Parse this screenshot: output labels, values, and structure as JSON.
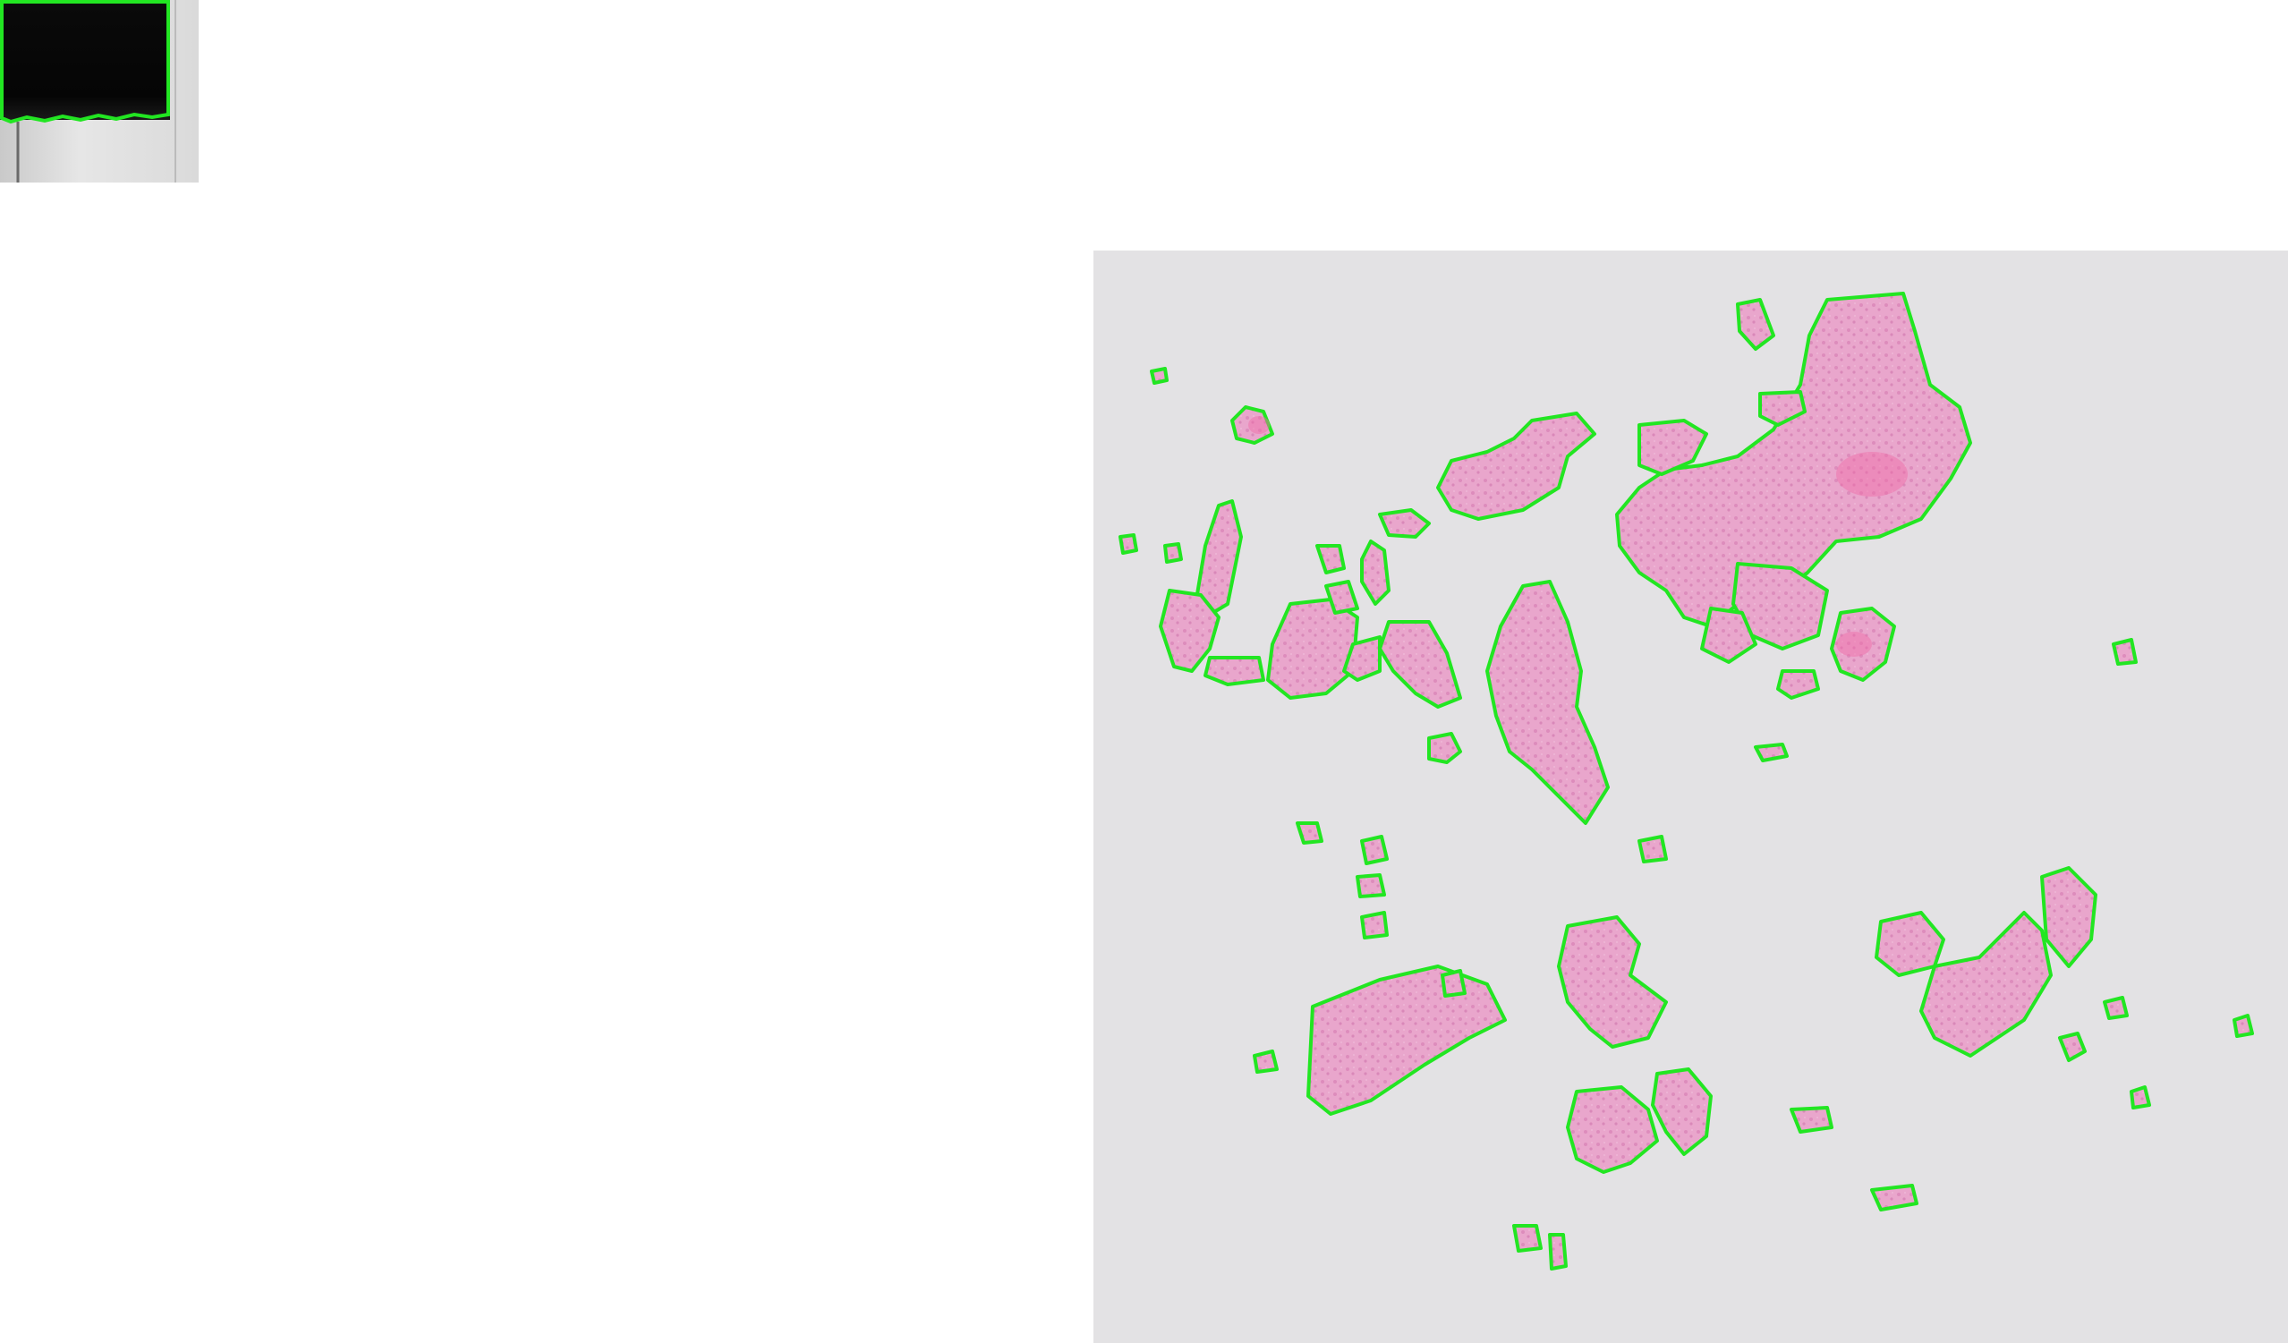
{
  "image": {
    "description_kind": "whole-slide histology overview with tissue segmentation contours",
    "background_color": "#ffffff",
    "slide_background_color": "#e3e2e4",
    "tissue_color": "#e9a6cc",
    "tissue_color_dark": "#d67bb0",
    "contour_color": "#22e622",
    "thumbnail_dark_color": "#050505"
  }
}
